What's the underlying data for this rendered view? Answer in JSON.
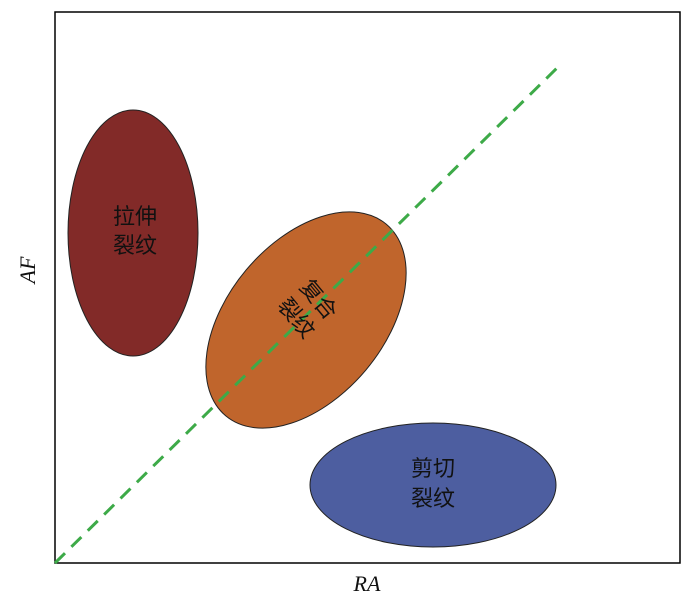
{
  "axes": {
    "x_label": "RA",
    "y_label": "AF"
  },
  "nodes": [
    {
      "lines": [
        "拉伸",
        "裂纹"
      ]
    },
    {
      "lines": [
        "复合",
        "裂纹"
      ]
    },
    {
      "lines": [
        "剪切",
        "裂纹"
      ]
    }
  ]
}
